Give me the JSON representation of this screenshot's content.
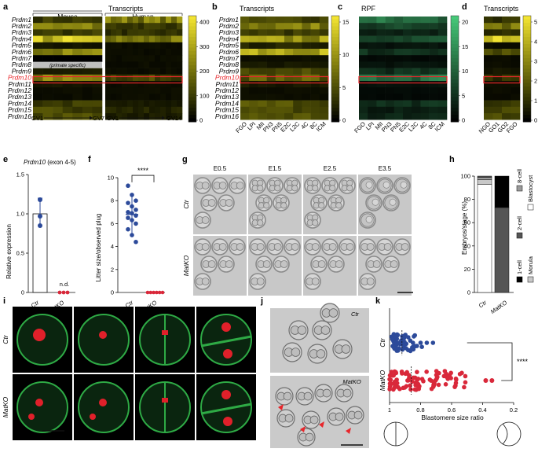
{
  "colors": {
    "highlight": "#e8262b",
    "mouse_dot": "#2c4a9a",
    "matko_dot": "#d9283a",
    "green_cells": "#2eaa45",
    "red_cells": "#e0202a",
    "heatmap_low": "#000000",
    "heatmap_high": "#f2e332",
    "rpf_high": "#3fc37a"
  },
  "panel_labels": [
    "a",
    "b",
    "c",
    "d",
    "e",
    "f",
    "g",
    "h",
    "i",
    "j",
    "k"
  ],
  "genes": [
    "Prdm1",
    "Prdm2",
    "Prdm3",
    "Prdm4",
    "Prdm5",
    "Prdm6",
    "Prdm7",
    "Prdm8",
    "Prdm9",
    "Prdm10",
    "Prdm11",
    "Prdm12",
    "Prdm13",
    "Prdm14",
    "Prdm15",
    "Prdm16"
  ],
  "highlight_gene_index": 9,
  "panel_a": {
    "title": "Transcripts",
    "mouse_label": "Mouse",
    "human_label": "Human",
    "primate_note": "(primate specific)",
    "mouse_axis": {
      "start": "GV1",
      "end": "GV7"
    },
    "human_axis": {
      "start": "GV1",
      "end": "GV14"
    },
    "colorbar_ticks": [
      "400",
      "300",
      "200",
      "100",
      "0"
    ]
  },
  "panel_b": {
    "title": "Transcripts",
    "stages": [
      "FGO",
      "LPI",
      "MII",
      "PN3",
      "PN5",
      "E2C",
      "L2C",
      "4C",
      "8C",
      "ICM"
    ],
    "colorbar_ticks": [
      "15",
      "10",
      "5",
      "0"
    ]
  },
  "panel_c": {
    "title": "RPF",
    "stages": [
      "FGO",
      "LPI",
      "MII",
      "PN3",
      "PN5",
      "E2C",
      "L2C",
      "4C",
      "8C",
      "ICM"
    ],
    "colorbar_ticks": [
      "20",
      "15",
      "10",
      "5",
      "0"
    ]
  },
  "panel_d": {
    "title": "Transcripts",
    "stages": [
      "NGO",
      "GO1",
      "GO2",
      "FGO"
    ],
    "colorbar_ticks": [
      "5",
      "4",
      "3",
      "2",
      "1",
      "0"
    ]
  },
  "panel_e": {
    "title": "Prdm10 (exon 4-5)",
    "ylabel": "Relative expression",
    "yticks": [
      "1.5",
      "1.0",
      "0.5",
      "0"
    ],
    "categories": [
      "Ctr",
      "MatKO"
    ],
    "na_label": "n.d."
  },
  "panel_f": {
    "ylabel": "Litter size/observed plug",
    "yticks": [
      "10",
      "8",
      "6",
      "4",
      "2",
      "0"
    ],
    "categories": [
      "Ctr",
      "MatKO"
    ],
    "significance": "****"
  },
  "panel_g": {
    "columns": [
      "E0.5",
      "E1.5",
      "E2.5",
      "E3.5"
    ],
    "rows": [
      "Ctr",
      "MatKO"
    ]
  },
  "panel_h": {
    "ylabel": "Embryos/stage (%)",
    "yticks": [
      "100",
      "80",
      "60",
      "40",
      "20",
      "0"
    ],
    "categories": [
      "Ctr",
      "MatKO"
    ],
    "legend": [
      "8-cell",
      "2-cell",
      "1-cell",
      "Blastocyst",
      "Morula"
    ]
  },
  "panel_i": {
    "rows": [
      "Ctr",
      "MatKO"
    ]
  },
  "panel_j": {
    "labels": [
      "Ctr",
      "MatKO"
    ]
  },
  "panel_k": {
    "rows": [
      "Ctr",
      "MatKO"
    ],
    "xlabel": "Blastomere size ratio",
    "xticks": [
      "1",
      "0.8",
      "0.6",
      "0.4",
      "0.2"
    ],
    "significance": "****"
  },
  "chart_data": [
    {
      "type": "bar",
      "panel": "e",
      "categories": [
        "Ctr",
        "MatKO"
      ],
      "values": [
        1.0,
        0.0
      ],
      "points": [
        [
          1.18,
          0.97,
          0.85
        ],
        [
          0,
          0,
          0
        ]
      ],
      "ylabel": "Relative expression",
      "ylim": [
        0,
        1.5
      ]
    },
    {
      "type": "scatter",
      "panel": "f",
      "categories": [
        "Ctr",
        "MatKO"
      ],
      "points": [
        [
          9.3,
          8.5,
          8.0,
          7.8,
          7.5,
          7.2,
          7.0,
          6.9,
          6.7,
          6.5,
          6.3,
          6.0,
          5.5,
          5.0,
          4.4
        ],
        [
          0,
          0,
          0,
          0,
          0,
          0
        ]
      ],
      "mean": [
        6.8,
        0
      ],
      "ylabel": "Litter size/observed plug",
      "ylim": [
        0,
        10
      ]
    },
    {
      "type": "bar",
      "panel": "h",
      "stacked": true,
      "categories": [
        "Ctr",
        "MatKO"
      ],
      "series": [
        {
          "name": "Blastocyst",
          "values": [
            93,
            0
          ]
        },
        {
          "name": "Morula",
          "values": [
            4,
            0
          ]
        },
        {
          "name": "8-cell",
          "values": [
            2,
            0
          ]
        },
        {
          "name": "2-cell",
          "values": [
            1,
            73
          ]
        },
        {
          "name": "1-cell",
          "values": [
            0,
            27
          ]
        }
      ],
      "ylabel": "Embryos/stage (%)",
      "ylim": [
        0,
        100
      ]
    },
    {
      "type": "scatter",
      "panel": "k",
      "categories": [
        "Ctr",
        "MatKO"
      ],
      "median": [
        0.92,
        0.86
      ],
      "xlabel": "Blastomere size ratio",
      "xlim": [
        1.0,
        0.2
      ]
    }
  ]
}
